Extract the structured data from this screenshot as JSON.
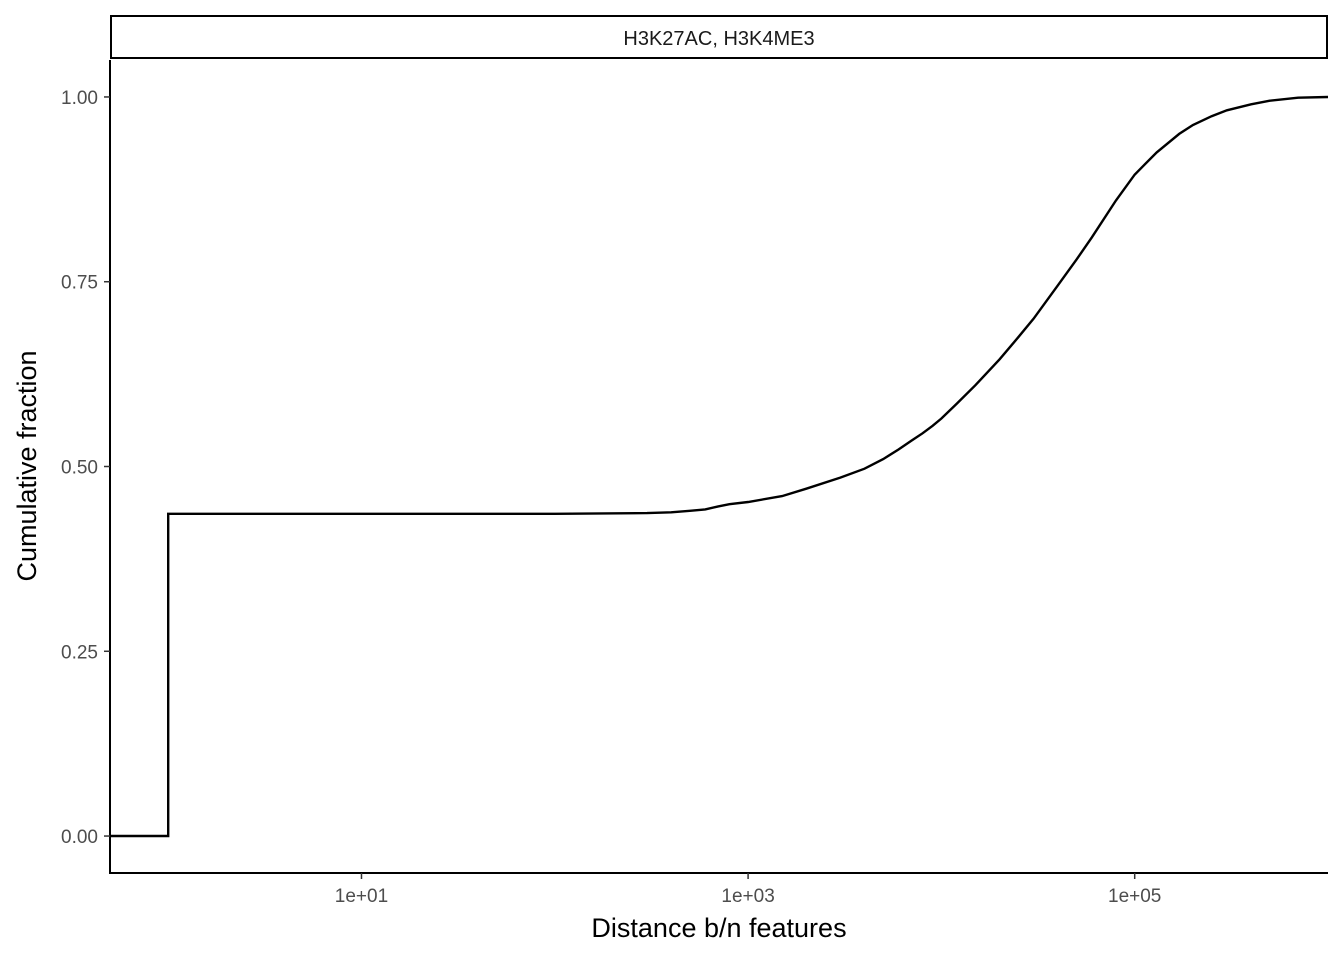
{
  "chart_data": {
    "type": "line",
    "subtype": "ecdf-step",
    "panel_title": "H3K27AC, H3K4ME3",
    "xlabel": "Distance b/n features",
    "ylabel": "Cumulative fraction",
    "x_scale": "log10",
    "xlim": [
      0.5,
      1000000
    ],
    "ylim": [
      -0.05,
      1.05
    ],
    "x_ticks": [
      10,
      1000,
      100000
    ],
    "x_tick_labels": [
      "1e+01",
      "1e+03",
      "1e+05"
    ],
    "y_ticks": [
      0,
      0.25,
      0.5,
      0.75,
      1
    ],
    "y_tick_labels": [
      "0.00",
      "0.25",
      "0.50",
      "0.75",
      "1.00"
    ],
    "grid": false,
    "legend": "none",
    "line_color": "#000000",
    "series": [
      {
        "points": [
          [
            0.5,
            0.0
          ],
          [
            1,
            0.0
          ],
          [
            1,
            0.436
          ],
          [
            100,
            0.436
          ],
          [
            300,
            0.437
          ],
          [
            400,
            0.438
          ],
          [
            500,
            0.44
          ],
          [
            600,
            0.442
          ],
          [
            700,
            0.446
          ],
          [
            800,
            0.449
          ],
          [
            1000,
            0.452
          ],
          [
            1500,
            0.46
          ],
          [
            2000,
            0.47
          ],
          [
            3000,
            0.485
          ],
          [
            4000,
            0.497
          ],
          [
            5000,
            0.51
          ],
          [
            6000,
            0.523
          ],
          [
            7000,
            0.535
          ],
          [
            8000,
            0.545
          ],
          [
            9000,
            0.555
          ],
          [
            10000,
            0.565
          ],
          [
            12000,
            0.585
          ],
          [
            15000,
            0.61
          ],
          [
            20000,
            0.645
          ],
          [
            25000,
            0.675
          ],
          [
            30000,
            0.7
          ],
          [
            40000,
            0.745
          ],
          [
            50000,
            0.78
          ],
          [
            60000,
            0.81
          ],
          [
            80000,
            0.86
          ],
          [
            100000,
            0.895
          ],
          [
            130000,
            0.925
          ],
          [
            170000,
            0.95
          ],
          [
            200000,
            0.962
          ],
          [
            250000,
            0.974
          ],
          [
            300000,
            0.982
          ],
          [
            400000,
            0.99
          ],
          [
            500000,
            0.995
          ],
          [
            700000,
            0.999
          ],
          [
            1000000,
            1.0
          ]
        ]
      }
    ]
  }
}
